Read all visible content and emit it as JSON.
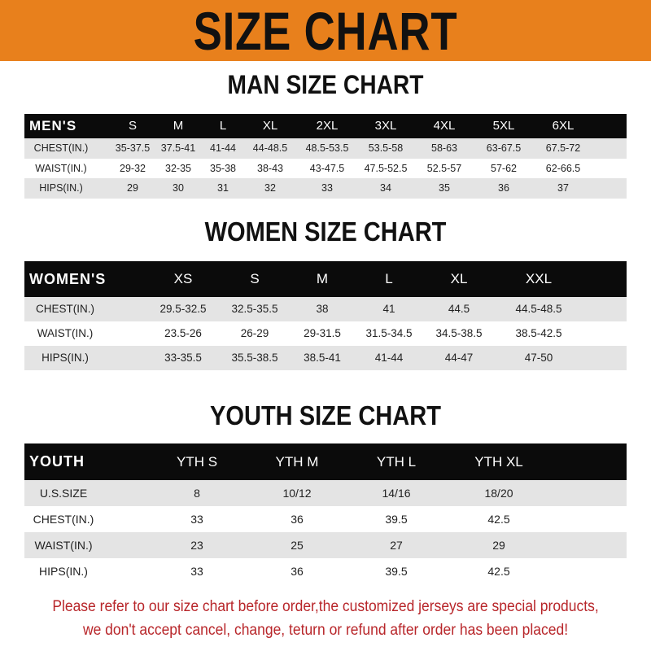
{
  "banner": {
    "title": "SIZE CHART",
    "color": "#e8801c"
  },
  "men": {
    "title": "MAN SIZE CHART",
    "header": [
      "MEN'S",
      "S",
      "M",
      "L",
      "XL",
      "2XL",
      "3XL",
      "4XL",
      "5XL",
      "6XL"
    ],
    "rows": [
      [
        "CHEST(IN.)",
        "35-37.5",
        "37.5-41",
        "41-44",
        "44-48.5",
        "48.5-53.5",
        "53.5-58",
        "58-63",
        "63-67.5",
        "67.5-72"
      ],
      [
        "WAIST(IN.)",
        "29-32",
        "32-35",
        "35-38",
        "38-43",
        "43-47.5",
        "47.5-52.5",
        "52.5-57",
        "57-62",
        "62-66.5"
      ],
      [
        "HIPS(IN.)",
        "29",
        "30",
        "31",
        "32",
        "33",
        "34",
        "35",
        "36",
        "37"
      ]
    ]
  },
  "women": {
    "title": "WOMEN SIZE CHART",
    "header": [
      "WOMEN'S",
      "XS",
      "S",
      "M",
      "L",
      "XL",
      "XXL"
    ],
    "rows": [
      [
        "CHEST(IN.)",
        "29.5-32.5",
        "32.5-35.5",
        "38",
        "41",
        "44.5",
        "44.5-48.5"
      ],
      [
        "WAIST(IN.)",
        "23.5-26",
        "26-29",
        "29-31.5",
        "31.5-34.5",
        "34.5-38.5",
        "38.5-42.5"
      ],
      [
        "HIPS(IN.)",
        "33-35.5",
        "35.5-38.5",
        "38.5-41",
        "41-44",
        "44-47",
        "47-50"
      ]
    ]
  },
  "youth": {
    "title": "YOUTH SIZE CHART",
    "header": [
      "YOUTH",
      "YTH S",
      "YTH M",
      "YTH L",
      "YTH XL"
    ],
    "rows": [
      [
        "U.S.SIZE",
        "8",
        "10/12",
        "14/16",
        "18/20"
      ],
      [
        "CHEST(IN.)",
        "33",
        "36",
        "39.5",
        "42.5"
      ],
      [
        "WAIST(IN.)",
        "23",
        "25",
        "27",
        "29"
      ],
      [
        "HIPS(IN.)",
        "33",
        "36",
        "39.5",
        "42.5"
      ]
    ]
  },
  "footer": {
    "line1": "Please refer to our size chart before order,the customized jerseys are special products,",
    "line2": "we don't accept cancel, change, teturn or refund after order has been placed!",
    "color": "#b8262a"
  }
}
